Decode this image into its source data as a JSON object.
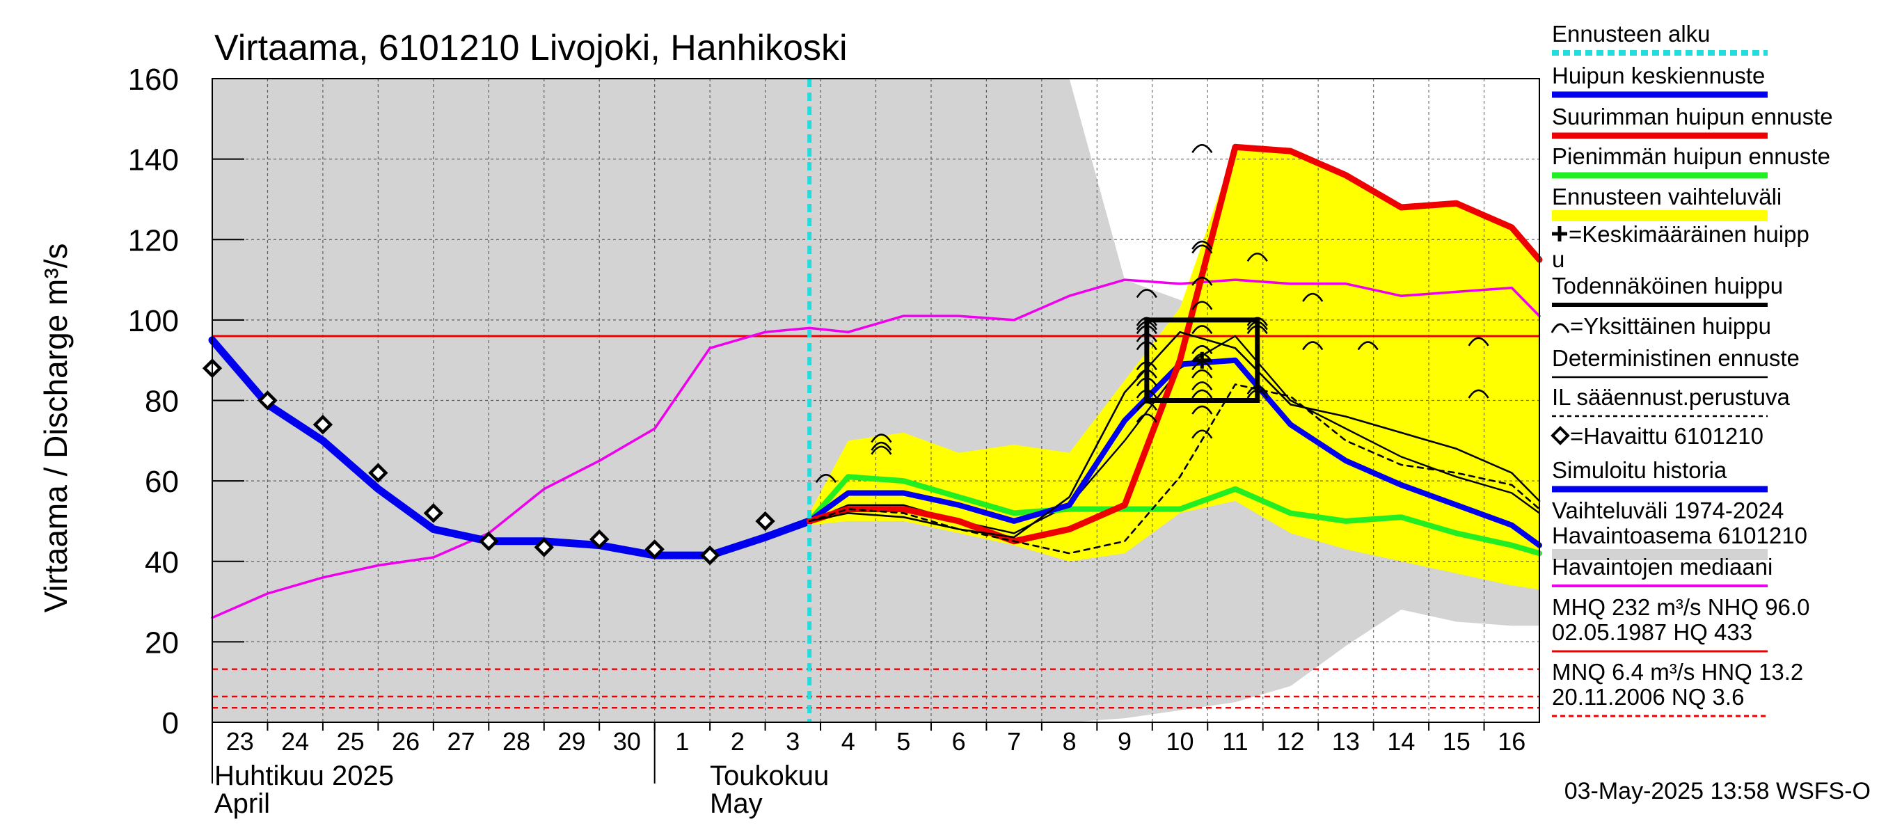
{
  "chart_data": {
    "type": "line",
    "title": "Virtaama, 6101210 Livojoki, Hanhikoski",
    "ylabel": "Virtaama / Discharge   m³/s",
    "ylim": [
      0,
      160
    ],
    "yticks": [
      0,
      20,
      40,
      60,
      80,
      100,
      120,
      140,
      160
    ],
    "x_days": [
      "23",
      "24",
      "25",
      "26",
      "27",
      "28",
      "29",
      "30",
      "1",
      "2",
      "3",
      "4",
      "5",
      "6",
      "7",
      "8",
      "9",
      "10",
      "11",
      "12",
      "13",
      "14",
      "15",
      "16"
    ],
    "month_labels": {
      "april_fi": "Huhtikuu  2025",
      "april_en": "April",
      "may_fi": "Toukokuu",
      "may_en": "May"
    },
    "forecast_start_x": 10.8,
    "colors": {
      "forecast_start": "#22dddd",
      "mean_peak": "#0000ee",
      "max_peak": "#ee0000",
      "min_peak": "#22ee22",
      "range": "#ffff00",
      "history_range": "#d3d3d3",
      "median": "#ee00ee",
      "threshold": "#ee0000"
    },
    "history_range": {
      "x": [
        0,
        9.5,
        10.5,
        11.5,
        12.5,
        13.5,
        14.5,
        15.5,
        16.5,
        17.5,
        18.5,
        19.5,
        20.5,
        21.5,
        22.5,
        23.5,
        24
      ],
      "upper": [
        160,
        160,
        160,
        160,
        160,
        160,
        160,
        160,
        110,
        105,
        100,
        93,
        85,
        80,
        75,
        70,
        68
      ],
      "lower": [
        0,
        0,
        0,
        0,
        0,
        0,
        0,
        0,
        1,
        3,
        5,
        9,
        19,
        28,
        25,
        24,
        24
      ]
    },
    "forecast_range": {
      "x": [
        10.8,
        11.5,
        12.5,
        13.5,
        14.5,
        15.5,
        16.5,
        17.5,
        18.5,
        19.5,
        20.5,
        21.5,
        22.5,
        23.5,
        24
      ],
      "upper": [
        52,
        70,
        72,
        67,
        69,
        67,
        85,
        103,
        143,
        142,
        136,
        128,
        129,
        123,
        115
      ],
      "lower": [
        49,
        50,
        50,
        47,
        44,
        40,
        42,
        52,
        55,
        47,
        43,
        40,
        37,
        34,
        33
      ]
    },
    "series": [
      {
        "name": "Havaintojen mediaani",
        "key": "median",
        "x": [
          0,
          1,
          2,
          3,
          4,
          5,
          6,
          7,
          8,
          9,
          10,
          10.8,
          11.5,
          12.5,
          13.5,
          14.5,
          15.5,
          16.5,
          17.5,
          18.5,
          19.5,
          20.5,
          21.5,
          22.5,
          23.5,
          24
        ],
        "y": [
          26,
          32,
          36,
          39,
          41,
          47,
          58,
          65,
          73,
          93,
          97,
          98,
          97,
          101,
          101,
          100,
          106,
          110,
          109,
          110,
          109,
          109,
          106,
          107,
          108,
          101
        ]
      },
      {
        "name": "Simuloitu historia",
        "key": "simulated",
        "x": [
          0,
          1,
          2,
          3,
          4,
          5,
          6,
          7,
          8,
          9,
          10,
          10.8
        ],
        "y": [
          95,
          79,
          70,
          58,
          48,
          45,
          45,
          44,
          41.5,
          41.5,
          46,
          50
        ]
      },
      {
        "name": "Pienimmän huipun ennuste",
        "key": "min_peak",
        "x": [
          10.8,
          11.5,
          12.5,
          13.5,
          14.5,
          15.5,
          16.5,
          17.5,
          18.5,
          19.5,
          20.5,
          21.5,
          22.5,
          23.5,
          24
        ],
        "y": [
          50,
          61,
          60,
          56,
          52,
          53,
          53,
          53,
          58,
          52,
          50,
          51,
          47,
          44,
          42
        ]
      },
      {
        "name": "Huipun keskiennuste",
        "key": "mean_peak",
        "x": [
          10.8,
          11.5,
          12.5,
          13.5,
          14.5,
          15.5,
          16.5,
          17.5,
          18.5,
          19.5,
          20.5,
          21.5,
          22.5,
          23.5,
          24
        ],
        "y": [
          50,
          57,
          57,
          54,
          50,
          54,
          75,
          89,
          90,
          74,
          65,
          59,
          54,
          49,
          44
        ]
      },
      {
        "name": "Suurimman huipun ennuste",
        "key": "max_peak",
        "x": [
          10.8,
          11.5,
          12.5,
          13.5,
          14.5,
          15.5,
          16.5,
          17.5,
          18.5,
          19.5,
          20.5,
          21.5,
          22.5,
          23.5,
          24
        ],
        "y": [
          50,
          53,
          53,
          50,
          45,
          48,
          54,
          90,
          143,
          142,
          136,
          128,
          129,
          123,
          115
        ]
      },
      {
        "name": "Deterministinen ennuste",
        "key": "deterministic",
        "x": [
          10.8,
          11.5,
          12.5,
          13.5,
          14.5,
          15.5,
          16.5,
          17.5,
          18.5,
          19.5,
          20.5,
          21.5,
          22.5,
          23.5,
          24
        ],
        "y": [
          50,
          52,
          51,
          48,
          46,
          56,
          82,
          97,
          93,
          79,
          76,
          72,
          68,
          62,
          55
        ]
      },
      {
        "name": "IL sääennust.perustuva",
        "key": "il_forecast",
        "x": [
          10.8,
          11.5,
          12.5,
          13.5,
          14.5,
          15.5,
          16.5,
          17.5,
          18.5,
          19.5,
          20.5,
          21.5,
          22.5,
          23.5,
          24
        ],
        "y": [
          50,
          53,
          52,
          48,
          45,
          42,
          45,
          61,
          84,
          81,
          70,
          64,
          62,
          59,
          53
        ]
      }
    ],
    "thin_members": [
      {
        "x": [
          10.8,
          11.5,
          12.5,
          13.5,
          14.5,
          15.5,
          16.5,
          17.5,
          18.5,
          19.5,
          20.5,
          21.5,
          22.5,
          23.5,
          24
        ],
        "y": [
          50,
          54,
          54,
          50,
          47,
          54,
          70,
          88,
          96,
          80,
          73,
          66,
          61,
          57,
          52
        ]
      }
    ],
    "observed": {
      "name": "Havaittu 6101210",
      "x": [
        0,
        1,
        2,
        3,
        4,
        5,
        6,
        7,
        8,
        9,
        10
      ],
      "y": [
        88,
        80,
        74,
        62,
        52,
        45,
        43.5,
        45.5,
        43,
        41.5,
        50
      ]
    },
    "peak_markers": [
      {
        "x": 11.1,
        "y": 61
      },
      {
        "x": 12.1,
        "y": 71
      },
      {
        "x": 12.1,
        "y": 69
      },
      {
        "x": 12.1,
        "y": 68
      },
      {
        "x": 16.9,
        "y": 107
      },
      {
        "x": 16.9,
        "y": 100
      },
      {
        "x": 16.9,
        "y": 99
      },
      {
        "x": 16.9,
        "y": 98
      },
      {
        "x": 16.9,
        "y": 96
      },
      {
        "x": 16.9,
        "y": 94
      },
      {
        "x": 16.9,
        "y": 89
      },
      {
        "x": 16.9,
        "y": 87
      },
      {
        "x": 16.9,
        "y": 85
      },
      {
        "x": 16.9,
        "y": 82
      },
      {
        "x": 16.9,
        "y": 79
      },
      {
        "x": 16.9,
        "y": 76
      },
      {
        "x": 17.9,
        "y": 143
      },
      {
        "x": 17.9,
        "y": 119
      },
      {
        "x": 17.9,
        "y": 118
      },
      {
        "x": 17.9,
        "y": 110
      },
      {
        "x": 17.9,
        "y": 104
      },
      {
        "x": 17.9,
        "y": 98
      },
      {
        "x": 17.9,
        "y": 93
      },
      {
        "x": 17.9,
        "y": 91
      },
      {
        "x": 17.9,
        "y": 89
      },
      {
        "x": 17.9,
        "y": 87
      },
      {
        "x": 17.9,
        "y": 84
      },
      {
        "x": 17.9,
        "y": 82
      },
      {
        "x": 17.9,
        "y": 78
      },
      {
        "x": 17.9,
        "y": 72
      },
      {
        "x": 18.9,
        "y": 116
      },
      {
        "x": 18.9,
        "y": 100
      },
      {
        "x": 18.9,
        "y": 99
      },
      {
        "x": 18.9,
        "y": 98
      },
      {
        "x": 18.9,
        "y": 83
      },
      {
        "x": 18.9,
        "y": 82
      },
      {
        "x": 19.9,
        "y": 106
      },
      {
        "x": 19.9,
        "y": 94
      },
      {
        "x": 20.9,
        "y": 94
      },
      {
        "x": 22.9,
        "y": 95
      },
      {
        "x": 22.9,
        "y": 82
      }
    ],
    "probable_peak_box": {
      "x0": 16.9,
      "x1": 18.9,
      "y0": 80,
      "y1": 100
    },
    "mean_peak_cross": {
      "x": 17.9,
      "y": 90
    },
    "mhq_line": 96,
    "low_lines": [
      13.2,
      6.4,
      3.6
    ]
  },
  "legend": [
    {
      "label": "Ennusteen alku",
      "style": "dotted-cyan"
    },
    {
      "label": "Huipun keskiennuste",
      "style": "blue"
    },
    {
      "label": "Suurimman huipun ennuste",
      "style": "red"
    },
    {
      "label": "Pienimmän huipun ennuste",
      "style": "green"
    },
    {
      "label": "Ennusteen vaihteluväli",
      "style": "yellow"
    },
    {
      "label": "=Keskimääräinen huipp",
      "label2": "u",
      "style": "plus"
    },
    {
      "label": "Todennäköinen huippu",
      "style": "black-thick"
    },
    {
      "label": "=Yksittäinen huippu",
      "style": "arc"
    },
    {
      "label": "Deterministinen ennuste",
      "style": "black-thin"
    },
    {
      "label": "IL sääennust.perustuva",
      "style": "dashed"
    },
    {
      "label": "=Havaittu 6101210",
      "style": "diamond"
    },
    {
      "label": "Simuloitu historia",
      "style": "blue"
    },
    {
      "label": "Vaihteluväli 1974-2024",
      "label2": " Havaintoasema 6101210",
      "style": "gray"
    },
    {
      "label": "Havaintojen mediaani",
      "style": "magenta"
    },
    {
      "label": "MHQ  232 m³/s NHQ 96.0",
      "label2": "02.05.1987 HQ  433",
      "style": "red-thin"
    },
    {
      "label": "MNQ  6.4 m³/s HNQ 13.2",
      "label2": "20.11.2006 NQ  3.6",
      "style": "red-dashed"
    }
  ],
  "footer": "03-May-2025 13:58 WSFS-O"
}
